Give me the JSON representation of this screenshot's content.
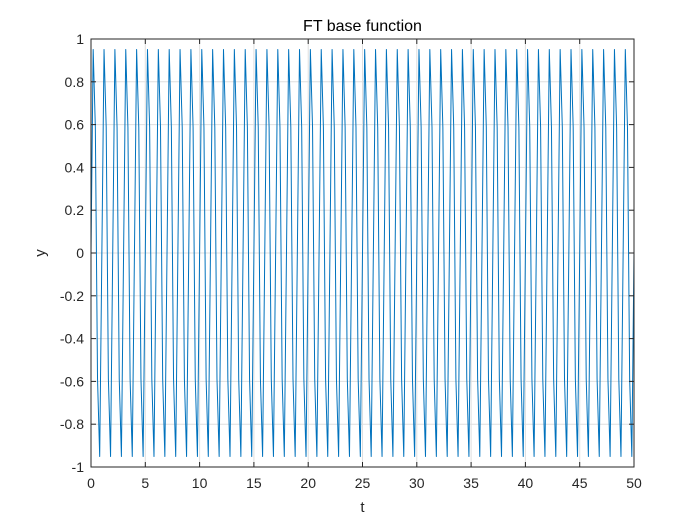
{
  "chart_data": {
    "type": "line",
    "title": "FT base function",
    "xlabel": "t",
    "ylabel": "y",
    "xlim": [
      0,
      50
    ],
    "ylim": [
      -1,
      1
    ],
    "xticks": [
      0,
      5,
      10,
      15,
      20,
      25,
      30,
      35,
      40,
      45,
      50
    ],
    "xtick_labels": [
      "0",
      "5",
      "10",
      "15",
      "20",
      "25",
      "30",
      "35",
      "40",
      "45",
      "50"
    ],
    "yticks": [
      -1,
      -0.8,
      -0.6,
      -0.4,
      -0.2,
      0,
      0.2,
      0.4,
      0.6,
      0.8,
      1
    ],
    "ytick_labels": [
      "-1",
      "-0.8",
      "-0.6",
      "-0.4",
      "-0.2",
      "0",
      "0.2",
      "0.4",
      "0.6",
      "0.8",
      "1"
    ],
    "grid": true,
    "box": true,
    "series": [
      {
        "function": "sin(2*pi*f*t)",
        "frequency": 1,
        "t_start": 0,
        "t_end": 50,
        "t_step": 0.2,
        "color": "#0072BD"
      }
    ]
  },
  "colors": {
    "axis": "#262626",
    "grid": "#dfdfdf",
    "background": "#ffffff"
  }
}
